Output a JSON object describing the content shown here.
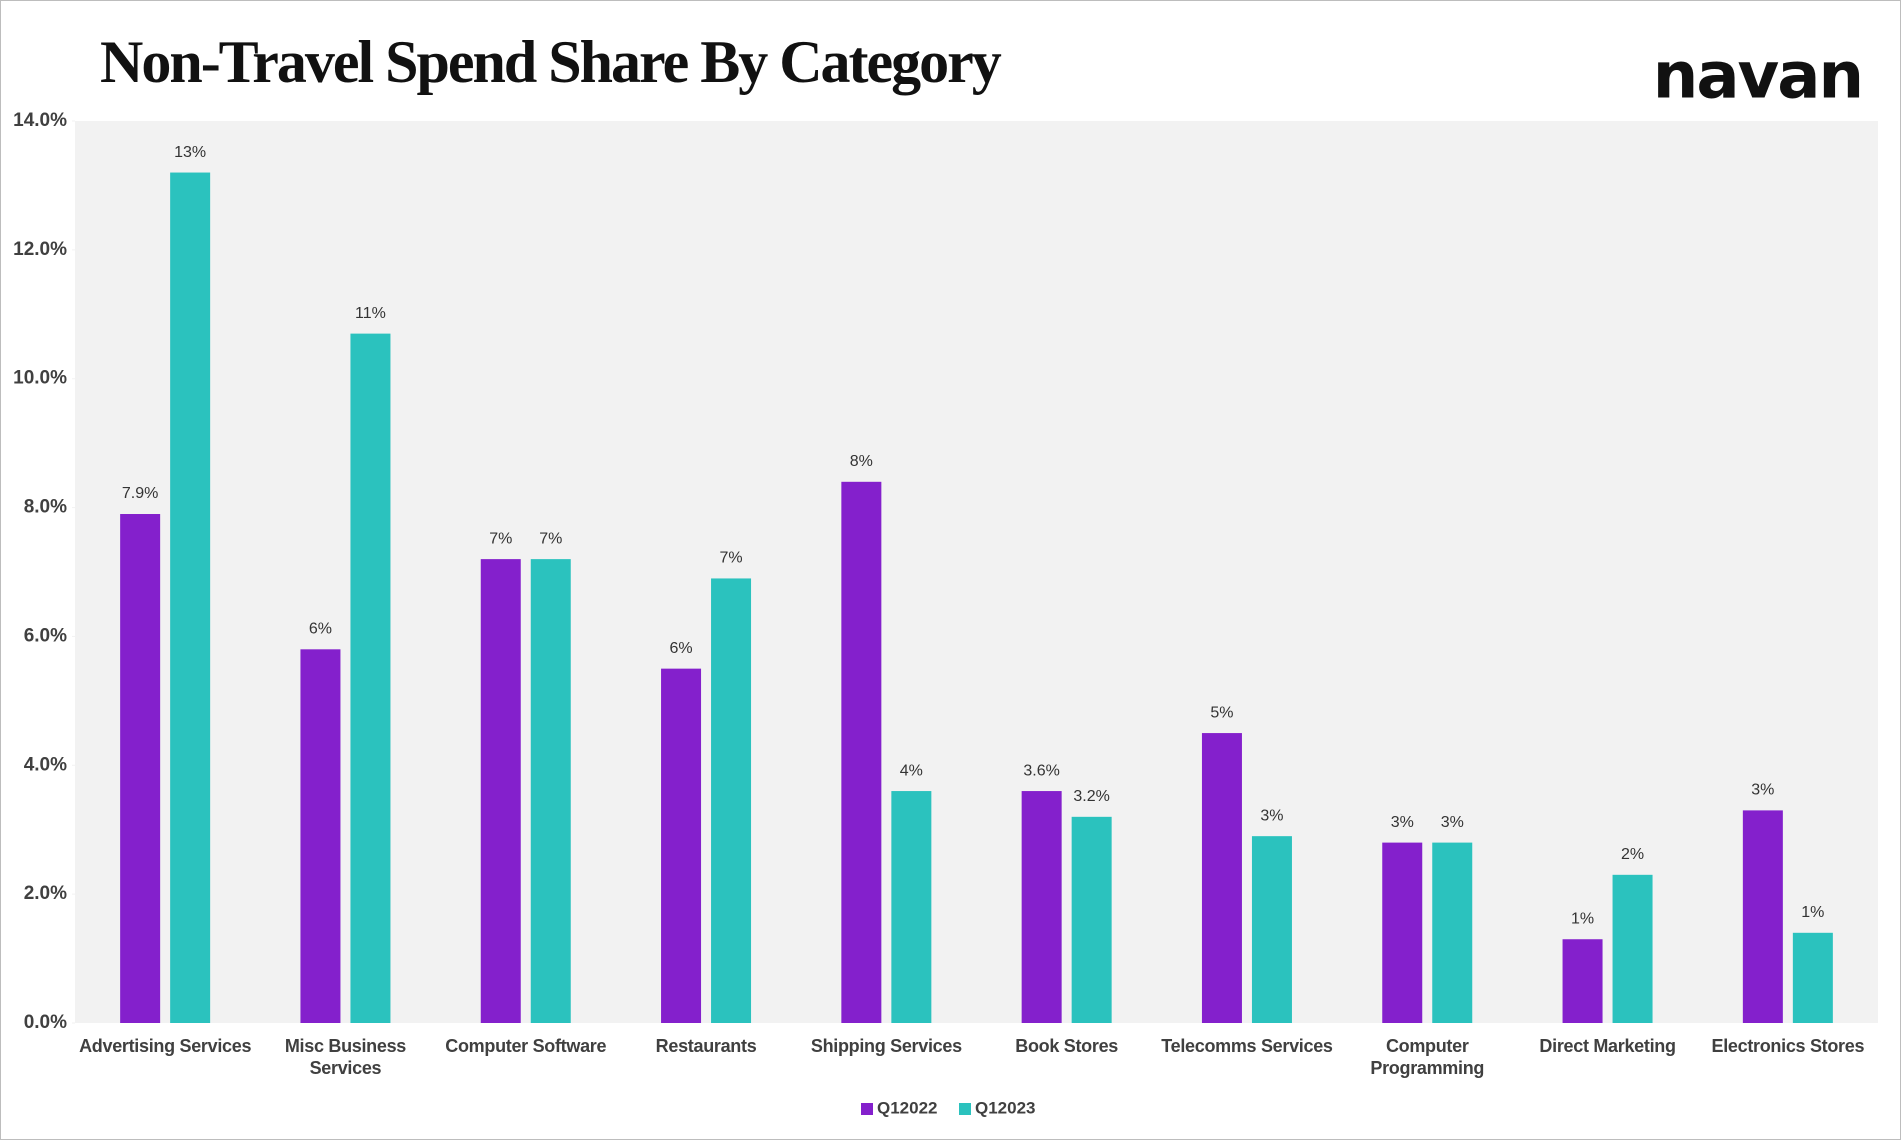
{
  "chart_data": {
    "type": "bar",
    "title": "Non-Travel Spend Share By Category",
    "logo": "navan",
    "categories": [
      "Advertising Services",
      "Misc Business Services",
      "Computer Software",
      "Restaurants",
      "Shipping Services",
      "Book Stores",
      "Telecomms Services",
      "Computer Programming",
      "Direct Marketing",
      "Electronics Stores"
    ],
    "series": [
      {
        "name": "Q12022",
        "color": "#8420cc",
        "values": [
          7.9,
          5.8,
          7.2,
          5.5,
          8.4,
          3.6,
          4.5,
          2.8,
          1.3,
          3.3
        ],
        "value_labels": [
          "7.9%",
          "6%",
          "7%",
          "6%",
          "8%",
          "3.6%",
          "5%",
          "3%",
          "1%",
          "3%"
        ]
      },
      {
        "name": "Q12023",
        "color": "#2bc2be",
        "values": [
          13.2,
          10.7,
          7.2,
          6.9,
          3.6,
          3.2,
          2.9,
          2.8,
          2.3,
          1.4
        ],
        "value_labels": [
          "13%",
          "11%",
          "7%",
          "7%",
          "4%",
          "3.2%",
          "3%",
          "3%",
          "2%",
          "1%"
        ]
      }
    ],
    "ylim": [
      0,
      14
    ],
    "yticks": [
      {
        "value": 0,
        "label": "0.0%"
      },
      {
        "value": 2,
        "label": "2.0%"
      },
      {
        "value": 4,
        "label": "4.0%"
      },
      {
        "value": 6,
        "label": "6.0%"
      },
      {
        "value": 8,
        "label": "8.0%"
      },
      {
        "value": 10,
        "label": "10.0%"
      },
      {
        "value": 12,
        "label": "12.0%"
      },
      {
        "value": 14,
        "label": "14.0%"
      }
    ],
    "legend": "bottom"
  }
}
